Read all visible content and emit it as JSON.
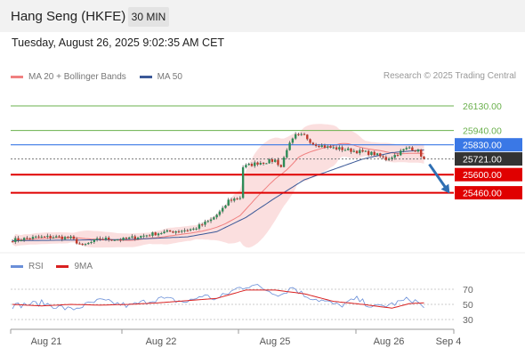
{
  "header": {
    "instrument": "Hang Seng (HKFE)",
    "timeframe": "30 MIN"
  },
  "timestamp": "Tuesday, August 26, 2025 9:02:35 AM CET",
  "legend": [
    {
      "label": "MA 20 + Bollinger Bands",
      "color": "#f08080"
    },
    {
      "label": "MA 50",
      "color": "#3b5998"
    }
  ],
  "credit": "Research © 2025 Trading Central",
  "rsi_legend": [
    {
      "label": "RSI",
      "color": "#6a8fd8"
    },
    {
      "label": "9MA",
      "color": "#d92020"
    }
  ],
  "colors": {
    "support": "#e00000",
    "pivot": "#3a78e6",
    "resistance": "#6ab04c",
    "last": "#333333",
    "arrow": "#2f6fb3"
  },
  "chart_data": [
    {
      "type": "candlestick",
      "x_ticks": [
        "Aug 21",
        "Aug 22",
        "Aug 25",
        "Aug 26",
        "Sep 4"
      ],
      "ylim": [
        25000,
        26250
      ],
      "levels": [
        {
          "kind": "resistance",
          "value": 26130.0,
          "label": "26130.00"
        },
        {
          "kind": "resistance",
          "value": 25940.0,
          "label": "25940.00"
        },
        {
          "kind": "pivot",
          "value": 25830.0,
          "label": "25830.00"
        },
        {
          "kind": "last",
          "value": 25721.0,
          "label": "25721.00"
        },
        {
          "kind": "support",
          "value": 25600.0,
          "label": "25600.00"
        },
        {
          "kind": "support",
          "value": 25460.0,
          "label": "25460.00"
        }
      ],
      "anchors": [
        [
          0,
          25095
        ],
        [
          8,
          25115
        ],
        [
          14,
          25120
        ],
        [
          20,
          25110
        ],
        [
          24,
          25050
        ],
        [
          30,
          25105
        ],
        [
          38,
          25100
        ],
        [
          44,
          25125
        ],
        [
          50,
          25150
        ],
        [
          56,
          25165
        ],
        [
          62,
          25180
        ],
        [
          68,
          25250
        ],
        [
          72,
          25330
        ],
        [
          74,
          25400
        ],
        [
          78,
          25425
        ],
        [
          79,
          25660
        ],
        [
          84,
          25690
        ],
        [
          90,
          25710
        ],
        [
          92,
          25660
        ],
        [
          94,
          25800
        ],
        [
          97,
          25900
        ],
        [
          100,
          25900
        ],
        [
          103,
          25840
        ],
        [
          108,
          25810
        ],
        [
          112,
          25800
        ],
        [
          118,
          25780
        ],
        [
          124,
          25760
        ],
        [
          128,
          25720
        ],
        [
          131,
          25750
        ],
        [
          134,
          25790
        ],
        [
          136,
          25810
        ],
        [
          139,
          25780
        ],
        [
          141,
          25721
        ]
      ],
      "ma50_anchors": [
        [
          0,
          25090
        ],
        [
          20,
          25095
        ],
        [
          40,
          25100
        ],
        [
          60,
          25120
        ],
        [
          70,
          25160
        ],
        [
          80,
          25270
        ],
        [
          90,
          25420
        ],
        [
          100,
          25560
        ],
        [
          110,
          25640
        ],
        [
          120,
          25720
        ],
        [
          130,
          25770
        ],
        [
          141,
          25790
        ]
      ],
      "projection": {
        "from": 25721.0,
        "to": 25460.0
      }
    },
    {
      "type": "line",
      "name": "RSI",
      "y_ticks": [
        70,
        50,
        30
      ],
      "ylim": [
        20,
        80
      ],
      "series": [
        {
          "name": "RSI",
          "anchors": [
            [
              0,
              48
            ],
            [
              10,
              52
            ],
            [
              20,
              43
            ],
            [
              30,
              55
            ],
            [
              40,
              48
            ],
            [
              50,
              58
            ],
            [
              60,
              53
            ],
            [
              65,
              62
            ],
            [
              70,
              57
            ],
            [
              77,
              71
            ],
            [
              82,
              76
            ],
            [
              88,
              68
            ],
            [
              92,
              63
            ],
            [
              96,
              73
            ],
            [
              100,
              62
            ],
            [
              106,
              55
            ],
            [
              112,
              48
            ],
            [
              118,
              57
            ],
            [
              124,
              46
            ],
            [
              130,
              50
            ],
            [
              136,
              57
            ],
            [
              139,
              53
            ],
            [
              141,
              44
            ]
          ]
        },
        {
          "name": "9MA",
          "anchors": [
            [
              0,
              50
            ],
            [
              10,
              48
            ],
            [
              20,
              50
            ],
            [
              30,
              49
            ],
            [
              40,
              50
            ],
            [
              50,
              52
            ],
            [
              60,
              55
            ],
            [
              70,
              58
            ],
            [
              80,
              69
            ],
            [
              90,
              69
            ],
            [
              100,
              64
            ],
            [
              110,
              54
            ],
            [
              120,
              50
            ],
            [
              130,
              45
            ],
            [
              136,
              51
            ],
            [
              141,
              52
            ]
          ]
        }
      ]
    }
  ]
}
